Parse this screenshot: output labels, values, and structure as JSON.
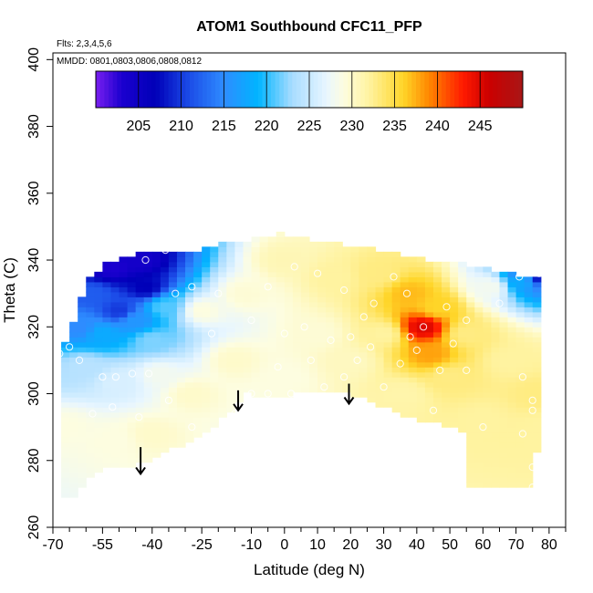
{
  "chart_data": {
    "type": "heatmap",
    "title": "ATOM1 Southbound CFC11_PFP",
    "flights_note": "Flts: 2,3,4,5,6",
    "dates_note": "MMDD: 0801,0803,0806,0808,0812",
    "xlabel": "Latitude (deg N)",
    "ylabel": "Theta (C)",
    "xlim": [
      -70,
      85
    ],
    "ylim": [
      260,
      402
    ],
    "x_tick_values": [
      -70,
      -55,
      -40,
      -25,
      -10,
      0,
      10,
      20,
      30,
      40,
      50,
      60,
      70,
      80
    ],
    "x_tick_labels": [
      "-70",
      "-55",
      "-40",
      "-25",
      "-10",
      "0",
      "10",
      "20",
      "30",
      "40",
      "50",
      "60",
      "70",
      "80"
    ],
    "x_minor_ticks": [
      -65,
      -60,
      -50,
      -45,
      -35,
      -30,
      -20,
      -15,
      -5,
      5,
      15,
      25,
      35,
      45,
      55,
      65,
      75,
      85
    ],
    "y_tick_values": [
      260,
      280,
      300,
      320,
      340,
      360,
      380,
      400
    ],
    "y_tick_labels": [
      "260",
      "280",
      "300",
      "320",
      "340",
      "360",
      "380",
      "400"
    ],
    "colorbar": {
      "min": 200,
      "max": 250,
      "tick_values": [
        205,
        210,
        215,
        220,
        225,
        230,
        235,
        240,
        245
      ],
      "tick_labels": [
        "205",
        "210",
        "215",
        "220",
        "225",
        "230",
        "235",
        "240",
        "245"
      ],
      "stops": [
        {
          "v": 200,
          "color": "#7a1ff0"
        },
        {
          "v": 203,
          "color": "#1b00cf"
        },
        {
          "v": 207,
          "color": "#0000b8"
        },
        {
          "v": 211,
          "color": "#1c4de8"
        },
        {
          "v": 215,
          "color": "#2e8cff"
        },
        {
          "v": 219,
          "color": "#00b4ff"
        },
        {
          "v": 223,
          "color": "#a8dcff"
        },
        {
          "v": 227,
          "color": "#e8f6ff"
        },
        {
          "v": 229,
          "color": "#fdfde0"
        },
        {
          "v": 232,
          "color": "#fff3a0"
        },
        {
          "v": 236,
          "color": "#ffd528"
        },
        {
          "v": 239,
          "color": "#ff8800"
        },
        {
          "v": 243,
          "color": "#ff1a00"
        },
        {
          "v": 246,
          "color": "#cc0000"
        },
        {
          "v": 250,
          "color": "#a81616"
        }
      ]
    },
    "field": {
      "description": "Interpolated CFC11 mixing ratio (ppt) vs latitude and theta",
      "lat_step": 2.5,
      "theta_step": 1.5,
      "points": [
        {
          "lat": -58,
          "theta": 340,
          "v": 204
        },
        {
          "lat": -52,
          "theta": 338,
          "v": 203
        },
        {
          "lat": -44,
          "theta": 340,
          "v": 204
        },
        {
          "lat": -42,
          "theta": 332,
          "v": 207
        },
        {
          "lat": -50,
          "theta": 325,
          "v": 210
        },
        {
          "lat": -58,
          "theta": 330,
          "v": 212
        },
        {
          "lat": -62,
          "theta": 320,
          "v": 215
        },
        {
          "lat": -55,
          "theta": 318,
          "v": 218
        },
        {
          "lat": -45,
          "theta": 322,
          "v": 216
        },
        {
          "lat": -40,
          "theta": 316,
          "v": 222
        },
        {
          "lat": -36,
          "theta": 326,
          "v": 221
        },
        {
          "lat": -60,
          "theta": 308,
          "v": 224
        },
        {
          "lat": -50,
          "theta": 304,
          "v": 226
        },
        {
          "lat": -38,
          "theta": 306,
          "v": 228
        },
        {
          "lat": -66,
          "theta": 290,
          "v": 229
        },
        {
          "lat": -52,
          "theta": 286,
          "v": 229
        },
        {
          "lat": -40,
          "theta": 288,
          "v": 230
        },
        {
          "lat": -28,
          "theta": 300,
          "v": 230
        },
        {
          "lat": -25,
          "theta": 325,
          "v": 229
        },
        {
          "lat": -12,
          "theta": 330,
          "v": 229.5
        },
        {
          "lat": -15,
          "theta": 310,
          "v": 230
        },
        {
          "lat": 0,
          "theta": 340,
          "v": 231
        },
        {
          "lat": 0,
          "theta": 305,
          "v": 229
        },
        {
          "lat": 10,
          "theta": 318,
          "v": 229.5
        },
        {
          "lat": 15,
          "theta": 335,
          "v": 232
        },
        {
          "lat": 20,
          "theta": 310,
          "v": 230.5
        },
        {
          "lat": 28,
          "theta": 336,
          "v": 233
        },
        {
          "lat": 30,
          "theta": 318,
          "v": 232
        },
        {
          "lat": 36,
          "theta": 300,
          "v": 231.5
        },
        {
          "lat": 38,
          "theta": 330,
          "v": 237
        },
        {
          "lat": 42,
          "theta": 320,
          "v": 245
        },
        {
          "lat": 44,
          "theta": 312,
          "v": 238
        },
        {
          "lat": 46,
          "theta": 326,
          "v": 236
        },
        {
          "lat": 50,
          "theta": 305,
          "v": 233
        },
        {
          "lat": 55,
          "theta": 318,
          "v": 233
        },
        {
          "lat": 60,
          "theta": 292,
          "v": 232
        },
        {
          "lat": 62,
          "theta": 332,
          "v": 228
        },
        {
          "lat": 68,
          "theta": 310,
          "v": 232
        },
        {
          "lat": 72,
          "theta": 334,
          "v": 218
        },
        {
          "lat": 75,
          "theta": 336,
          "v": 205
        },
        {
          "lat": 78,
          "theta": 290,
          "v": 232
        },
        {
          "lat": 76,
          "theta": 300,
          "v": 233
        }
      ]
    },
    "coverage_polygon": [
      [
        -66,
        265
      ],
      [
        -63,
        270
      ],
      [
        -60,
        274
      ],
      [
        -57,
        277
      ],
      [
        -50,
        278
      ],
      [
        -43,
        279
      ],
      [
        -35,
        283
      ],
      [
        -25,
        287
      ],
      [
        -18,
        293
      ],
      [
        -12,
        300
      ],
      [
        -7,
        299
      ],
      [
        -2,
        298
      ],
      [
        3,
        300
      ],
      [
        10,
        300
      ],
      [
        18,
        300
      ],
      [
        25,
        298
      ],
      [
        30,
        296
      ],
      [
        35,
        294
      ],
      [
        40,
        292
      ],
      [
        47,
        291
      ],
      [
        52,
        290
      ],
      [
        55,
        288
      ],
      [
        56,
        272
      ],
      [
        66,
        272
      ],
      [
        75,
        272
      ],
      [
        77,
        288
      ],
      [
        77,
        310
      ],
      [
        78,
        322
      ],
      [
        77,
        335
      ],
      [
        69,
        336
      ],
      [
        60,
        338
      ],
      [
        45,
        340
      ],
      [
        30,
        343
      ],
      [
        15,
        345
      ],
      [
        0,
        348
      ],
      [
        -10,
        346
      ],
      [
        -20,
        345
      ],
      [
        -25,
        343
      ],
      [
        -38,
        342
      ],
      [
        -45,
        342
      ],
      [
        -52,
        340
      ],
      [
        -58,
        336
      ],
      [
        -61,
        330
      ],
      [
        -64,
        320
      ],
      [
        -67,
        314
      ],
      [
        -67,
        300
      ],
      [
        -67,
        280
      ]
    ],
    "sample_markers": [
      [
        -42,
        340
      ],
      [
        -36,
        343
      ],
      [
        -62,
        310
      ],
      [
        -65,
        314
      ],
      [
        -55,
        305
      ],
      [
        -51,
        305
      ],
      [
        -46,
        306
      ],
      [
        -41,
        306
      ],
      [
        -68,
        312
      ],
      [
        -35,
        298
      ],
      [
        -52,
        296
      ],
      [
        -58,
        294
      ],
      [
        -44,
        293
      ],
      [
        -28,
        290
      ],
      [
        -15,
        294
      ],
      [
        -10,
        300
      ],
      [
        -5,
        300
      ],
      [
        2,
        300
      ],
      [
        6,
        298
      ],
      [
        12,
        302
      ],
      [
        18,
        305
      ],
      [
        22,
        310
      ],
      [
        26,
        314
      ],
      [
        30,
        302
      ],
      [
        35,
        309
      ],
      [
        40,
        313
      ],
      [
        47,
        307
      ],
      [
        51,
        315
      ],
      [
        55,
        322
      ],
      [
        65,
        327
      ],
      [
        71,
        335
      ],
      [
        -20,
        330
      ],
      [
        -10,
        322
      ],
      [
        0,
        318
      ],
      [
        6,
        320
      ],
      [
        14,
        316
      ],
      [
        20,
        317
      ],
      [
        24,
        323
      ],
      [
        -5,
        332
      ],
      [
        3,
        338
      ],
      [
        10,
        336
      ],
      [
        18,
        331
      ],
      [
        27,
        327
      ],
      [
        33,
        335
      ],
      [
        37,
        330
      ],
      [
        42,
        320
      ],
      [
        38,
        317
      ],
      [
        49,
        326
      ],
      [
        55,
        307
      ],
      [
        -28,
        332
      ],
      [
        -33,
        330
      ],
      [
        -22,
        318
      ],
      [
        -2,
        308
      ],
      [
        8,
        310
      ],
      [
        77,
        336
      ],
      [
        45,
        295
      ],
      [
        40,
        290
      ],
      [
        60,
        290
      ],
      [
        72,
        288
      ],
      [
        75,
        272
      ],
      [
        75,
        278
      ],
      [
        75,
        298
      ],
      [
        72,
        305
      ],
      [
        75,
        295
      ]
    ],
    "annotations": [
      {
        "type": "arrow-down",
        "x": -43.5,
        "y_from": 284,
        "y_to": 276
      },
      {
        "type": "arrow-down",
        "x": -14,
        "y_from": 301,
        "y_to": 295
      },
      {
        "type": "arrow-down",
        "x": 19.5,
        "y_from": 303,
        "y_to": 297
      }
    ]
  }
}
